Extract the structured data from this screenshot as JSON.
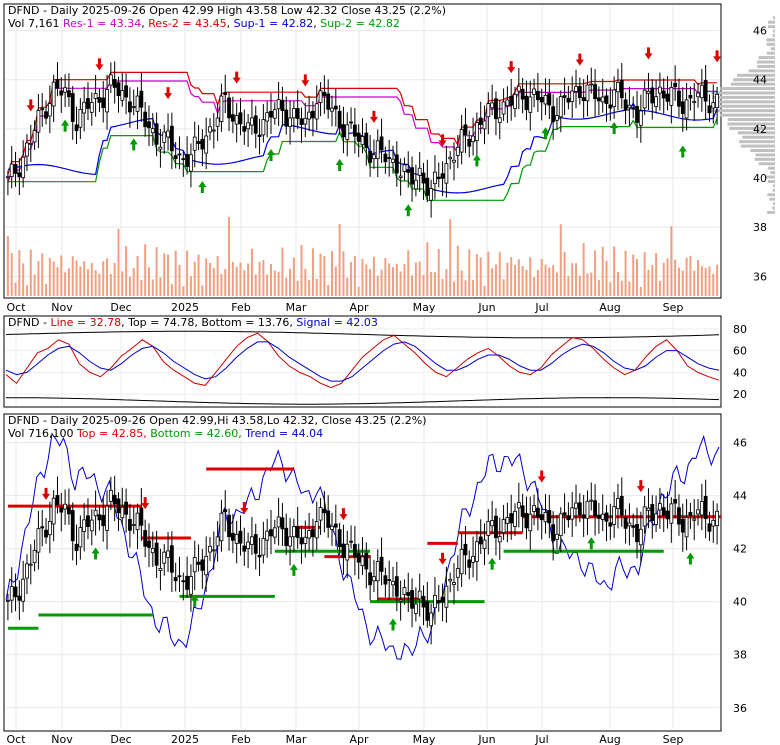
{
  "panels": {
    "top": {
      "line1": {
        "ticker": "DFND",
        "freq": "Daily",
        "date": "2025-09-26",
        "open": "Open 42.99",
        "high": "High 43.58",
        "low": "Low 42.32",
        "close": "Close 43.25 (2.2%)"
      },
      "line2": {
        "vol": "Vol 7,161",
        "res1": "Res-1 = 43.34",
        "res2": "Res-2 = 43.45",
        "sup1": "Sup-1 = 42.82",
        "sup2": "Sup-2 = 42.82"
      }
    },
    "middle": {
      "ticker": "DFND",
      "line": "Line = 32.78",
      "top": "Top = 74.78",
      "bottom": "Bottom = 13.76",
      "signal": "Signal = 42.03"
    },
    "bottom": {
      "line1": "DFND - Daily 2025-09-26 Open 42.99,Hi 43.58,Lo 42.32, Close 43.25 (2.2%)",
      "vol": "Vol 716,100",
      "top": "Top = 42.85,",
      "bottom": "Bottom = 42.60,",
      "trend": "Trend = 44.04"
    }
  },
  "colors": {
    "res1": "#cc00cc",
    "res2": "#dd0000",
    "sup1": "#0000dd",
    "sup2": "#009900",
    "up_arrow": "#009900",
    "down_arrow": "#dd0000",
    "volume": "#f0a080",
    "line": "#cc0000",
    "signal": "#0000cc",
    "trend": "#0000cc",
    "profile": "#c0c0c0"
  },
  "chart_data": [
    {
      "type": "candlestick",
      "x_ticks": [
        "Oct",
        "Nov",
        "Dec",
        "2025",
        "Feb",
        "Mar",
        "Apr",
        "May",
        "Jun",
        "Jul",
        "Aug",
        "Sep"
      ],
      "y_ticks": [
        36,
        38,
        40,
        42,
        44,
        46
      ],
      "ylim": [
        35.2,
        47.0
      ],
      "close_series": [
        {
          "x": 0,
          "c": 39.8
        },
        {
          "x": 3,
          "c": 40.6
        },
        {
          "x": 6,
          "c": 41.5
        },
        {
          "x": 9,
          "c": 42.7
        },
        {
          "x": 12,
          "c": 43.6
        },
        {
          "x": 15,
          "c": 43.4
        },
        {
          "x": 18,
          "c": 42.4
        },
        {
          "x": 21,
          "c": 42.9
        },
        {
          "x": 24,
          "c": 43.3
        },
        {
          "x": 27,
          "c": 43.7
        },
        {
          "x": 30,
          "c": 43.4
        },
        {
          "x": 33,
          "c": 43.1
        },
        {
          "x": 36,
          "c": 42.3
        },
        {
          "x": 39,
          "c": 41.7
        },
        {
          "x": 42,
          "c": 41.4
        },
        {
          "x": 45,
          "c": 40.9
        },
        {
          "x": 48,
          "c": 40.8
        },
        {
          "x": 51,
          "c": 41.6
        },
        {
          "x": 54,
          "c": 42.2
        },
        {
          "x": 57,
          "c": 43.1
        },
        {
          "x": 60,
          "c": 42.4
        },
        {
          "x": 63,
          "c": 41.9
        },
        {
          "x": 66,
          "c": 42.2
        },
        {
          "x": 69,
          "c": 42.6
        },
        {
          "x": 72,
          "c": 42.8
        },
        {
          "x": 75,
          "c": 42.5
        },
        {
          "x": 78,
          "c": 42.1
        },
        {
          "x": 81,
          "c": 43.4
        },
        {
          "x": 84,
          "c": 42.9
        },
        {
          "x": 87,
          "c": 42.4
        },
        {
          "x": 90,
          "c": 41.8
        },
        {
          "x": 93,
          "c": 41.5
        },
        {
          "x": 96,
          "c": 41.0
        },
        {
          "x": 99,
          "c": 40.9
        },
        {
          "x": 102,
          "c": 40.6
        },
        {
          "x": 105,
          "c": 39.8
        },
        {
          "x": 108,
          "c": 40.3
        },
        {
          "x": 111,
          "c": 39.3
        },
        {
          "x": 114,
          "c": 40.4
        },
        {
          "x": 117,
          "c": 41.0
        },
        {
          "x": 120,
          "c": 41.6
        },
        {
          "x": 123,
          "c": 42.1
        },
        {
          "x": 126,
          "c": 42.6
        },
        {
          "x": 129,
          "c": 42.9
        },
        {
          "x": 132,
          "c": 43.1
        },
        {
          "x": 135,
          "c": 43.4
        },
        {
          "x": 138,
          "c": 43.3
        },
        {
          "x": 141,
          "c": 43.0
        },
        {
          "x": 144,
          "c": 42.8
        },
        {
          "x": 147,
          "c": 43.2
        },
        {
          "x": 150,
          "c": 43.7
        },
        {
          "x": 153,
          "c": 43.4
        },
        {
          "x": 156,
          "c": 43.1
        },
        {
          "x": 159,
          "c": 43.5
        },
        {
          "x": 162,
          "c": 43.0
        },
        {
          "x": 165,
          "c": 42.7
        },
        {
          "x": 168,
          "c": 43.2
        },
        {
          "x": 171,
          "c": 43.6
        },
        {
          "x": 174,
          "c": 43.3
        },
        {
          "x": 177,
          "c": 43.0
        },
        {
          "x": 180,
          "c": 43.4
        },
        {
          "x": 183,
          "c": 43.1
        },
        {
          "x": 186,
          "c": 43.25
        }
      ],
      "res1": 43.34,
      "res2": 43.45,
      "sup1": 42.82,
      "sup2": 42.82
    },
    {
      "type": "line",
      "y_ticks": [
        20,
        40,
        60,
        80
      ],
      "ylim": [
        10,
        90
      ],
      "series": [
        {
          "name": "Line",
          "values": [
            38,
            30,
            44,
            58,
            62,
            70,
            66,
            48,
            40,
            36,
            44,
            55,
            62,
            70,
            64,
            50,
            42,
            36,
            30,
            28,
            40,
            52,
            64,
            72,
            76,
            68,
            55,
            46,
            40,
            36,
            30,
            26,
            30,
            42,
            54,
            62,
            70,
            74,
            66,
            58,
            48,
            40,
            36,
            44,
            52,
            58,
            62,
            55,
            46,
            40,
            38,
            44,
            56,
            64,
            72,
            70,
            62,
            52,
            44,
            38,
            42,
            54,
            64,
            70,
            60,
            46,
            40,
            36,
            32.78
          ]
        },
        {
          "name": "Signal",
          "values": [
            42,
            38,
            40,
            48,
            56,
            62,
            64,
            58,
            50,
            44,
            42,
            48,
            56,
            62,
            64,
            58,
            50,
            44,
            38,
            34,
            36,
            44,
            54,
            62,
            68,
            68,
            62,
            54,
            48,
            42,
            36,
            32,
            32,
            36,
            44,
            52,
            60,
            66,
            68,
            64,
            56,
            48,
            42,
            42,
            46,
            52,
            56,
            56,
            52,
            46,
            42,
            42,
            48,
            56,
            62,
            66,
            64,
            58,
            50,
            44,
            42,
            46,
            54,
            60,
            60,
            54,
            48,
            44,
            42.03
          ]
        }
      ],
      "top": 74.78,
      "bottom": 13.76
    },
    {
      "type": "candlestick",
      "y_ticks": [
        36,
        38,
        40,
        42,
        44,
        46
      ],
      "ylim": [
        35.2,
        47.0
      ],
      "top": 42.85,
      "bottom": 42.6,
      "trend": 44.04
    }
  ]
}
